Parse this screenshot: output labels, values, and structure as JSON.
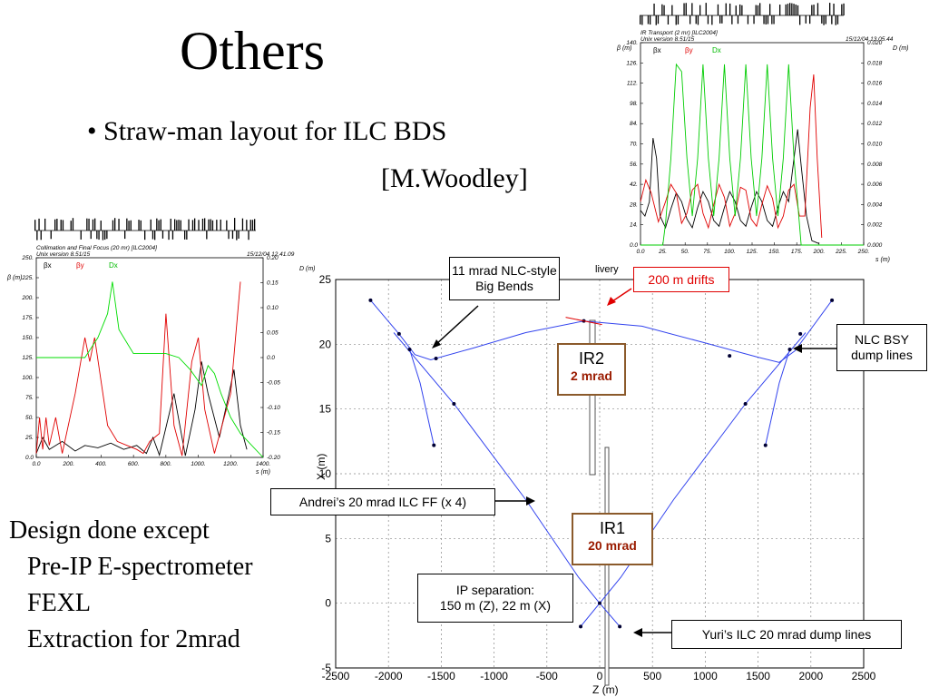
{
  "slide": {
    "title": "Others",
    "bullet": "• Straw-man layout for ILC BDS",
    "author": "[M.Woodley]",
    "design_lines": [
      "Design done except",
      "Pre-IP E-spectrometer",
      "FEXL",
      "Extraction for 2mrad"
    ]
  },
  "annotations": {
    "big_bends": "11 mrad NLC-style Big Bends",
    "drifts": "200 m drifts",
    "partial_word": "livery",
    "nlc_bsy": "NLC BSY dump lines",
    "andrei": "Andrei’s 20 mrad ILC FF (x 4)",
    "ip_sep_1": "IP separation:",
    "ip_sep_2": "150 m (Z), 22 m (X)",
    "yuri": "Yuri’s ILC 20 mrad dump lines",
    "ir2_name": "IR2",
    "ir2_angle": "2 mrad",
    "ir1_name": "IR1",
    "ir1_angle": "20 mrad"
  },
  "chart_data": [
    {
      "type": "line",
      "title": "",
      "xlabel": "Z (m)",
      "ylabel": "X (m)",
      "xlim": [
        -2500,
        2500
      ],
      "ylim": [
        -5,
        25
      ],
      "xticks": [
        -2500,
        -2000,
        -1500,
        -1000,
        -500,
        0,
        500,
        1000,
        1500,
        2000,
        2500
      ],
      "yticks": [
        -5,
        0,
        5,
        10,
        15,
        20,
        25
      ],
      "grid": true,
      "series": [
        {
          "points": [
            [
              -2170,
              23.4
            ],
            [
              -1900,
              20.8
            ],
            [
              -1750,
              19.2
            ],
            [
              -1600,
              18.8
            ],
            [
              -1200,
              19.7
            ],
            [
              -700,
              20.9
            ],
            [
              -150,
              21.8
            ]
          ]
        },
        {
          "points": [
            [
              -150,
              21.8
            ],
            [
              400,
              21.4
            ],
            [
              1000,
              20.1
            ],
            [
              1500,
              19.0
            ],
            [
              1700,
              18.6
            ],
            [
              1850,
              19.5
            ],
            [
              2200,
              23.4
            ]
          ]
        },
        {
          "points": [
            [
              -1800,
              19.6
            ],
            [
              -1700,
              17.0
            ],
            [
              -1570,
              12.2
            ]
          ]
        },
        {
          "points": [
            [
              1800,
              19.6
            ],
            [
              1700,
              17.0
            ],
            [
              1570,
              12.2
            ]
          ]
        },
        {
          "points": [
            [
              -1950,
              20.9
            ],
            [
              -1380,
              15.4
            ],
            [
              -700,
              8.0
            ],
            [
              -200,
              2.0
            ],
            [
              0,
              0
            ]
          ]
        },
        {
          "points": [
            [
              1950,
              20.9
            ],
            [
              1380,
              15.4
            ],
            [
              700,
              8.0
            ],
            [
              200,
              2.0
            ],
            [
              0,
              0
            ]
          ]
        },
        {
          "points": [
            [
              -180,
              -1.8
            ],
            [
              0,
              0
            ],
            [
              190,
              -1.8
            ]
          ]
        }
      ],
      "markers": [
        [
          -2170,
          23.4
        ],
        [
          -1900,
          20.8
        ],
        [
          -1800,
          19.6
        ],
        [
          -1550,
          18.9
        ],
        [
          -1380,
          15.4
        ],
        [
          -1570,
          12.2
        ],
        [
          2200,
          23.4
        ],
        [
          1900,
          20.8
        ],
        [
          1800,
          19.6
        ],
        [
          1230,
          19.1
        ],
        [
          1380,
          15.4
        ],
        [
          1570,
          12.2
        ],
        [
          -150,
          21.8
        ],
        [
          0,
          0
        ],
        [
          -180,
          -1.8
        ],
        [
          190,
          -1.8
        ]
      ]
    },
    {
      "type": "line",
      "title": "IR Transport (2 mr) [ILC2004]",
      "subtitle": "Unix version 8.51/15",
      "date": "15/12/04  13.05.44",
      "xlabel": "s (m)",
      "ylabel": "β (m)",
      "y2label": "D (m)",
      "xlim": [
        0,
        250
      ],
      "ylim": [
        0,
        140
      ],
      "y2lim": [
        0,
        0.02
      ],
      "xticks": [
        "0.0",
        "25.",
        "50.",
        "75.",
        "100.",
        "125.",
        "150.",
        "175.",
        "200.",
        "225.",
        "250."
      ],
      "yticks": [
        "0.0",
        "14.",
        "28.",
        "42.",
        "56.",
        "70.",
        "84.",
        "98.",
        "112.",
        "126.",
        "140."
      ],
      "y2ticks": [
        "0.000",
        "0.002",
        "0.004",
        "0.006",
        "0.008",
        "0.010",
        "0.012",
        "0.014",
        "0.016",
        "0.018",
        "0.020"
      ],
      "legend": [
        "βx",
        "βy",
        "Dx"
      ],
      "series": [
        {
          "name": "βx",
          "color": "#000000",
          "points": [
            [
              0,
              24
            ],
            [
              5,
              20
            ],
            [
              10,
              30
            ],
            [
              14,
              74
            ],
            [
              18,
              60
            ],
            [
              22,
              20
            ],
            [
              28,
              12
            ],
            [
              34,
              25
            ],
            [
              40,
              36
            ],
            [
              46,
              30
            ],
            [
              52,
              18
            ],
            [
              58,
              12
            ],
            [
              64,
              26
            ],
            [
              70,
              37
            ],
            [
              76,
              30
            ],
            [
              82,
              17
            ],
            [
              88,
              13
            ],
            [
              94,
              26
            ],
            [
              100,
              37
            ],
            [
              106,
              30
            ],
            [
              112,
              17
            ],
            [
              118,
              13
            ],
            [
              124,
              26
            ],
            [
              130,
              37
            ],
            [
              136,
              30
            ],
            [
              142,
              17
            ],
            [
              148,
              13
            ],
            [
              154,
              26
            ],
            [
              160,
              37
            ],
            [
              166,
              30
            ],
            [
              172,
              60
            ],
            [
              176,
              80
            ],
            [
              180,
              55
            ],
            [
              186,
              20
            ],
            [
              192,
              3
            ],
            [
              200,
              1
            ]
          ]
        },
        {
          "name": "βy",
          "color": "#e00000",
          "points": [
            [
              0,
              30
            ],
            [
              6,
              45
            ],
            [
              12,
              36
            ],
            [
              20,
              16
            ],
            [
              28,
              30
            ],
            [
              34,
              42
            ],
            [
              40,
              36
            ],
            [
              46,
              15
            ],
            [
              52,
              22
            ],
            [
              58,
              38
            ],
            [
              64,
              42
            ],
            [
              70,
              22
            ],
            [
              76,
              12
            ],
            [
              82,
              28
            ],
            [
              88,
              42
            ],
            [
              94,
              33
            ],
            [
              100,
              13
            ],
            [
              106,
              22
            ],
            [
              112,
              40
            ],
            [
              118,
              38
            ],
            [
              124,
              18
            ],
            [
              130,
              13
            ],
            [
              136,
              28
            ],
            [
              142,
              41
            ],
            [
              148,
              32
            ],
            [
              154,
              12
            ],
            [
              160,
              20
            ],
            [
              166,
              38
            ],
            [
              172,
              42
            ],
            [
              178,
              20
            ],
            [
              184,
              20
            ],
            [
              190,
              95
            ],
            [
              194,
              118
            ],
            [
              198,
              60
            ],
            [
              203,
              5
            ]
          ]
        },
        {
          "name": "Dx",
          "color": "#00cc00",
          "points": [
            [
              0,
              0
            ],
            [
              25,
              0
            ],
            [
              28,
              15
            ],
            [
              34,
              60
            ],
            [
              40,
              125
            ],
            [
              46,
              120
            ],
            [
              52,
              60
            ],
            [
              58,
              20
            ],
            [
              64,
              60
            ],
            [
              70,
              125
            ],
            [
              76,
              60
            ],
            [
              82,
              20
            ],
            [
              88,
              60
            ],
            [
              94,
              125
            ],
            [
              100,
              60
            ],
            [
              106,
              20
            ],
            [
              112,
              60
            ],
            [
              118,
              125
            ],
            [
              124,
              60
            ],
            [
              130,
              20
            ],
            [
              136,
              60
            ],
            [
              142,
              125
            ],
            [
              148,
              60
            ],
            [
              154,
              20
            ],
            [
              160,
              60
            ],
            [
              166,
              125
            ],
            [
              172,
              60
            ],
            [
              180,
              0
            ],
            [
              250,
              0
            ]
          ]
        }
      ]
    },
    {
      "type": "line",
      "title": "Collimation and Final Focus (20 mr) [ILC2004]",
      "subtitle": "Unix version 8.51/15",
      "date": "15/12/04  12.41.09",
      "xlabel": "s (m)",
      "ylabel": "β (m)",
      "y2label": "D (m)",
      "xlim": [
        0,
        1400
      ],
      "ylim": [
        0,
        250
      ],
      "y2lim": [
        -0.2,
        0.2
      ],
      "xticks": [
        "0.0",
        "200.",
        "400.",
        "600.",
        "800.",
        "1000.",
        "1200.",
        "1400."
      ],
      "yticks": [
        "0.0",
        "25.",
        "50.",
        "75.",
        "100.",
        "125.",
        "150.",
        "175.",
        "200.",
        "225.",
        "250."
      ],
      "y2ticks": [
        "-0.20",
        "-0.15",
        "-0.10",
        "-0.05",
        "0.0",
        "0.05",
        "0.10",
        "0.15",
        "0.20"
      ],
      "legend": [
        "βx",
        "βy",
        "Dx"
      ],
      "series": [
        {
          "name": "βx",
          "color": "#000000",
          "points": [
            [
              0,
              5
            ],
            [
              40,
              25
            ],
            [
              80,
              10
            ],
            [
              160,
              20
            ],
            [
              240,
              8
            ],
            [
              300,
              15
            ],
            [
              380,
              12
            ],
            [
              460,
              18
            ],
            [
              540,
              10
            ],
            [
              620,
              15
            ],
            [
              680,
              5
            ],
            [
              720,
              25
            ],
            [
              760,
              3
            ],
            [
              850,
              80
            ],
            [
              920,
              2
            ],
            [
              980,
              60
            ],
            [
              1020,
              120
            ],
            [
              1060,
              80
            ],
            [
              1130,
              25
            ],
            [
              1190,
              80
            ],
            [
              1220,
              110
            ],
            [
              1260,
              40
            ],
            [
              1300,
              10
            ]
          ]
        },
        {
          "name": "βy",
          "color": "#e00000",
          "points": [
            [
              0,
              5
            ],
            [
              20,
              50
            ],
            [
              40,
              10
            ],
            [
              60,
              50
            ],
            [
              80,
              15
            ],
            [
              120,
              50
            ],
            [
              160,
              5
            ],
            [
              240,
              80
            ],
            [
              300,
              150
            ],
            [
              330,
              120
            ],
            [
              360,
              150
            ],
            [
              440,
              40
            ],
            [
              500,
              20
            ],
            [
              560,
              15
            ],
            [
              620,
              10
            ],
            [
              660,
              5
            ],
            [
              700,
              20
            ],
            [
              760,
              30
            ],
            [
              800,
              180
            ],
            [
              850,
              40
            ],
            [
              900,
              2
            ],
            [
              960,
              120
            ],
            [
              1000,
              150
            ],
            [
              1040,
              60
            ],
            [
              1100,
              5
            ],
            [
              1200,
              80
            ],
            [
              1260,
              220
            ]
          ]
        },
        {
          "name": "Dx",
          "color": "#00dd00",
          "points": [
            [
              0,
              125
            ],
            [
              300,
              125
            ],
            [
              380,
              150
            ],
            [
              440,
              180
            ],
            [
              470,
              220
            ],
            [
              510,
              160
            ],
            [
              600,
              130
            ],
            [
              800,
              130
            ],
            [
              880,
              125
            ],
            [
              950,
              110
            ],
            [
              1020,
              90
            ],
            [
              1060,
              115
            ],
            [
              1100,
              105
            ],
            [
              1140,
              80
            ],
            [
              1200,
              50
            ],
            [
              1260,
              30
            ],
            [
              1400,
              0
            ]
          ]
        }
      ]
    }
  ]
}
